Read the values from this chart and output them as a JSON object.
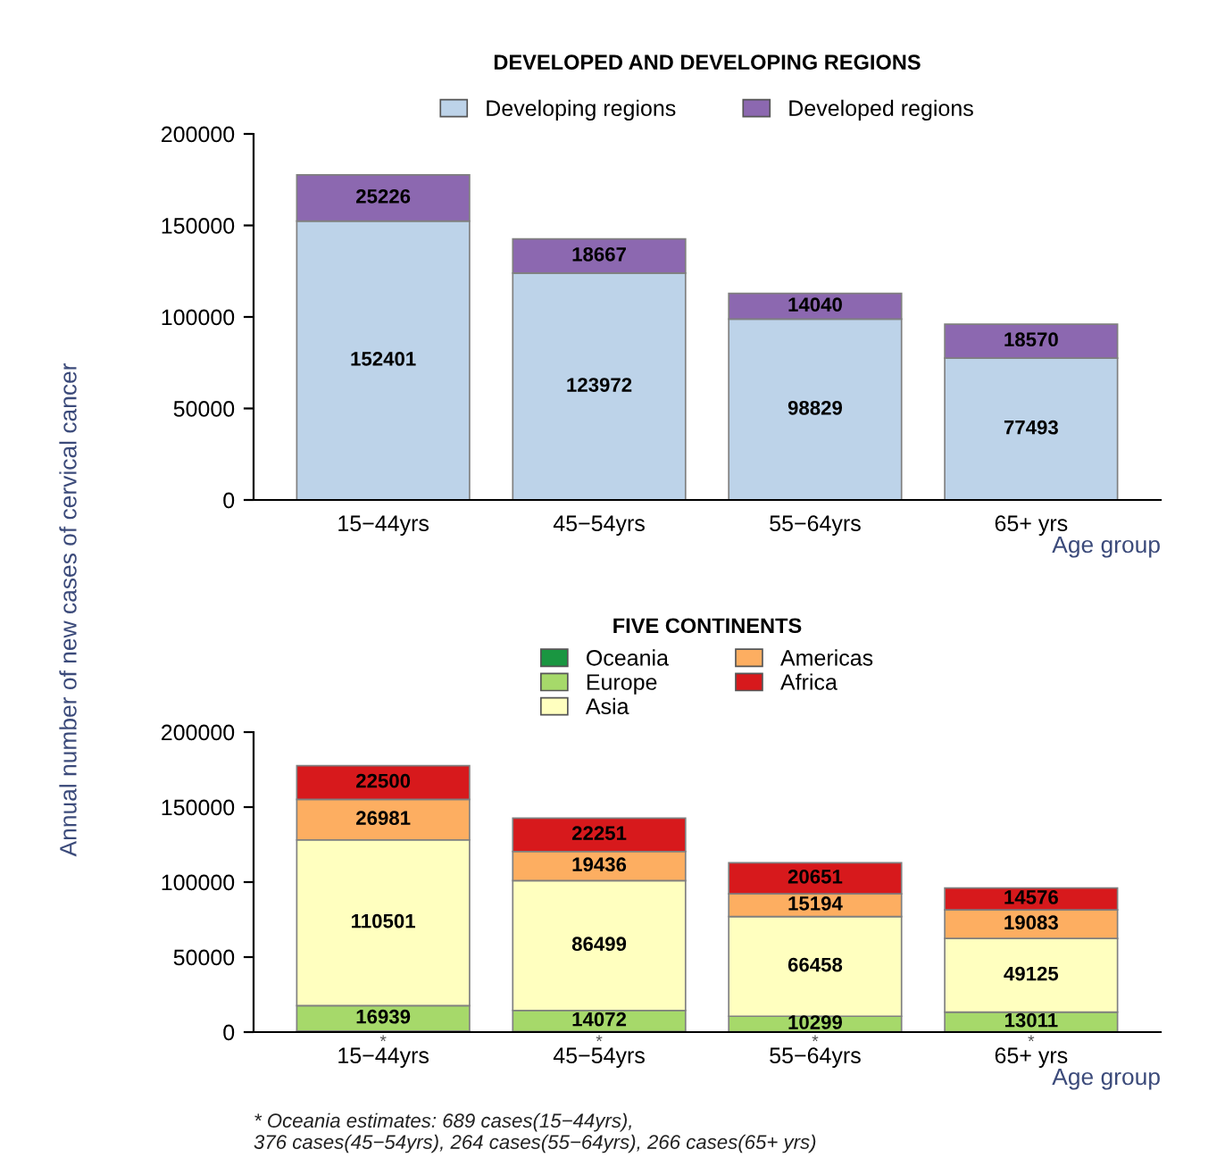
{
  "chart_data": [
    {
      "type": "bar",
      "title": "DEVELOPED AND DEVELOPING REGIONS",
      "xlabel": "Age group",
      "ylabel": "Annual number of new cases of cervical cancer",
      "categories": [
        "15−44yrs",
        "45−54yrs",
        "55−64yrs",
        "65+ yrs"
      ],
      "stacked": true,
      "series": [
        {
          "name": "Developing regions",
          "color": "#bdd3e9",
          "values": [
            152401,
            123972,
            98829,
            77493
          ]
        },
        {
          "name": "Developed regions",
          "color": "#8c68b0",
          "values": [
            25226,
            18667,
            14040,
            18570
          ]
        }
      ],
      "data_labels": true,
      "ylim": [
        0,
        200000
      ],
      "yticks": [
        0,
        50000,
        100000,
        150000,
        200000
      ],
      "grid": false,
      "legend": "top"
    },
    {
      "type": "bar",
      "title": "FIVE CONTINENTS",
      "xlabel": "Age group",
      "categories": [
        "15−44yrs",
        "45−54yrs",
        "55−64yrs",
        "65+ yrs"
      ],
      "stacked": true,
      "series": [
        {
          "name": "Oceania",
          "color": "#1a9641",
          "values": [
            689,
            376,
            264,
            266
          ],
          "value_labels": [
            "*",
            "*",
            "*",
            "*"
          ]
        },
        {
          "name": "Europe",
          "color": "#a6d96a",
          "values": [
            16939,
            14072,
            10299,
            13011
          ],
          "value_labels": [
            "16939",
            "14072",
            "10299",
            "13011"
          ]
        },
        {
          "name": "Asia",
          "color": "#ffffbf",
          "values": [
            110501,
            86499,
            66458,
            49125
          ],
          "value_labels": [
            "110501",
            "86499",
            "66458",
            "49125"
          ]
        },
        {
          "name": "Americas",
          "color": "#fdae61",
          "values": [
            26981,
            19436,
            15194,
            19083
          ],
          "value_labels": [
            "26981",
            "19436",
            "15194",
            "19083"
          ]
        },
        {
          "name": "Africa",
          "color": "#d7191c",
          "values": [
            22500,
            22251,
            20651,
            14576
          ],
          "value_labels": [
            "22500",
            "22251",
            "20651",
            "14576"
          ]
        }
      ],
      "ylim": [
        0,
        200000
      ],
      "yticks": [
        0,
        50000,
        100000,
        150000,
        200000
      ],
      "grid": false,
      "legend": "top",
      "annotations": [
        "* Oceania estimates: 689 cases(15−44yrs),\n376 cases(45−54yrs), 264 cases(55−64yrs), 266 cases(65+ yrs)"
      ]
    }
  ]
}
